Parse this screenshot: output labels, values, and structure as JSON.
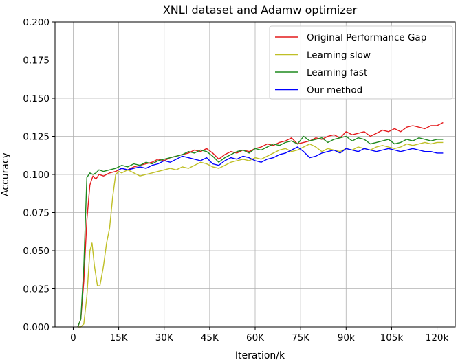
{
  "chart_data": {
    "type": "line",
    "title": "XNLI dataset and Adamw optimizer",
    "xlabel": "Iteration/k",
    "ylabel": "Accuracy",
    "xlim": [
      -6,
      126
    ],
    "ylim": [
      0,
      0.2
    ],
    "xticks": [
      0,
      15,
      30,
      45,
      60,
      75,
      90,
      105,
      120
    ],
    "xtick_labels": [
      "0",
      "15K",
      "30K",
      "45K",
      "60K",
      "75K",
      "90k",
      "105k",
      "120k"
    ],
    "yticks": [
      0,
      0.025,
      0.05,
      0.075,
      0.1,
      0.125,
      0.15,
      0.175,
      0.2
    ],
    "ytick_labels": [
      "0.000",
      "0.025",
      "0.050",
      "0.075",
      "0.100",
      "0.125",
      "0.150",
      "0.175",
      "0.200"
    ],
    "grid": true,
    "legend_position": "top-right",
    "series": [
      {
        "name": "Original Performance Gap",
        "color": "#e41a1c",
        "x": [
          1.5,
          2.5,
          3.5,
          4.5,
          5.5,
          6.5,
          7.5,
          8.5,
          10,
          12,
          14,
          16,
          18,
          20,
          22,
          24,
          26,
          28,
          30,
          32,
          34,
          36,
          38,
          40,
          42,
          44,
          46,
          48,
          50,
          52,
          54,
          56,
          58,
          60,
          62,
          64,
          66,
          68,
          70,
          72,
          74,
          76,
          78,
          80,
          82,
          84,
          86,
          88,
          90,
          92,
          94,
          96,
          98,
          100,
          102,
          104,
          106,
          108,
          110,
          112,
          114,
          116,
          118,
          120,
          122
        ],
        "y": [
          0.0,
          0.005,
          0.03,
          0.07,
          0.093,
          0.099,
          0.097,
          0.1,
          0.099,
          0.101,
          0.102,
          0.104,
          0.103,
          0.105,
          0.106,
          0.107,
          0.108,
          0.11,
          0.109,
          0.111,
          0.112,
          0.113,
          0.114,
          0.116,
          0.115,
          0.117,
          0.114,
          0.11,
          0.113,
          0.115,
          0.114,
          0.116,
          0.115,
          0.117,
          0.118,
          0.12,
          0.119,
          0.121,
          0.122,
          0.124,
          0.12,
          0.121,
          0.122,
          0.124,
          0.123,
          0.125,
          0.126,
          0.124,
          0.128,
          0.126,
          0.127,
          0.128,
          0.125,
          0.127,
          0.129,
          0.128,
          0.13,
          0.128,
          0.131,
          0.132,
          0.131,
          0.13,
          0.132,
          0.132,
          0.134
        ]
      },
      {
        "name": "Learning slow",
        "color": "#bfbf26",
        "x": [
          1.5,
          2.5,
          3.5,
          4.5,
          5.5,
          6.2,
          7,
          8,
          8.8,
          10,
          11,
          12,
          13,
          14,
          15,
          16,
          18,
          20,
          22,
          24,
          26,
          28,
          30,
          32,
          34,
          36,
          38,
          40,
          42,
          44,
          46,
          48,
          50,
          52,
          54,
          56,
          58,
          60,
          62,
          64,
          66,
          68,
          70,
          72,
          74,
          76,
          78,
          80,
          82,
          84,
          86,
          88,
          90,
          92,
          94,
          96,
          98,
          100,
          102,
          104,
          106,
          108,
          110,
          112,
          114,
          116,
          118,
          120,
          122
        ],
        "y": [
          0.0,
          0.0,
          0.002,
          0.02,
          0.05,
          0.055,
          0.04,
          0.027,
          0.027,
          0.04,
          0.055,
          0.065,
          0.085,
          0.1,
          0.102,
          0.101,
          0.103,
          0.101,
          0.099,
          0.1,
          0.101,
          0.102,
          0.103,
          0.104,
          0.103,
          0.105,
          0.104,
          0.106,
          0.108,
          0.107,
          0.105,
          0.104,
          0.106,
          0.108,
          0.109,
          0.11,
          0.109,
          0.111,
          0.11,
          0.112,
          0.114,
          0.116,
          0.117,
          0.115,
          0.116,
          0.118,
          0.12,
          0.118,
          0.115,
          0.117,
          0.116,
          0.115,
          0.117,
          0.116,
          0.118,
          0.117,
          0.116,
          0.118,
          0.119,
          0.118,
          0.117,
          0.118,
          0.12,
          0.119,
          0.12,
          0.121,
          0.12,
          0.121,
          0.121
        ]
      },
      {
        "name": "Learning fast",
        "color": "#1f8a1f",
        "x": [
          1.5,
          2.5,
          3.5,
          4.5,
          5.5,
          6.5,
          7.5,
          8.5,
          10,
          12,
          14,
          16,
          18,
          20,
          22,
          24,
          26,
          28,
          30,
          32,
          34,
          36,
          38,
          40,
          42,
          44,
          46,
          48,
          50,
          52,
          54,
          56,
          58,
          60,
          62,
          64,
          66,
          68,
          70,
          72,
          74,
          76,
          78,
          80,
          82,
          84,
          86,
          88,
          90,
          92,
          94,
          96,
          98,
          100,
          102,
          104,
          106,
          108,
          110,
          112,
          114,
          116,
          118,
          120,
          122
        ],
        "y": [
          0.0,
          0.005,
          0.04,
          0.098,
          0.101,
          0.1,
          0.101,
          0.103,
          0.102,
          0.103,
          0.104,
          0.106,
          0.105,
          0.107,
          0.106,
          0.108,
          0.107,
          0.109,
          0.11,
          0.111,
          0.112,
          0.113,
          0.115,
          0.114,
          0.116,
          0.115,
          0.112,
          0.108,
          0.111,
          0.113,
          0.115,
          0.116,
          0.114,
          0.117,
          0.116,
          0.118,
          0.12,
          0.119,
          0.121,
          0.122,
          0.12,
          0.125,
          0.122,
          0.123,
          0.124,
          0.121,
          0.123,
          0.124,
          0.125,
          0.122,
          0.124,
          0.123,
          0.12,
          0.121,
          0.122,
          0.123,
          0.12,
          0.121,
          0.123,
          0.122,
          0.124,
          0.123,
          0.122,
          0.123,
          0.123
        ]
      },
      {
        "name": "Our method",
        "color": "#0000ff",
        "x": [
          15,
          16,
          18,
          20,
          22,
          24,
          26,
          28,
          30,
          32,
          34,
          36,
          38,
          40,
          42,
          44,
          46,
          48,
          50,
          52,
          54,
          56,
          58,
          60,
          62,
          64,
          66,
          68,
          70,
          72,
          74,
          76,
          78,
          80,
          82,
          84,
          86,
          88,
          90,
          92,
          94,
          96,
          98,
          100,
          102,
          104,
          106,
          108,
          110,
          112,
          114,
          116,
          118,
          120,
          122
        ],
        "y": [
          0.103,
          0.104,
          0.103,
          0.104,
          0.105,
          0.104,
          0.106,
          0.107,
          0.109,
          0.108,
          0.11,
          0.112,
          0.111,
          0.11,
          0.109,
          0.111,
          0.107,
          0.106,
          0.109,
          0.111,
          0.11,
          0.112,
          0.111,
          0.109,
          0.108,
          0.11,
          0.111,
          0.113,
          0.114,
          0.116,
          0.118,
          0.115,
          0.111,
          0.112,
          0.114,
          0.115,
          0.116,
          0.114,
          0.117,
          0.116,
          0.115,
          0.117,
          0.116,
          0.115,
          0.116,
          0.117,
          0.116,
          0.115,
          0.116,
          0.117,
          0.116,
          0.115,
          0.115,
          0.114,
          0.114
        ]
      }
    ]
  }
}
